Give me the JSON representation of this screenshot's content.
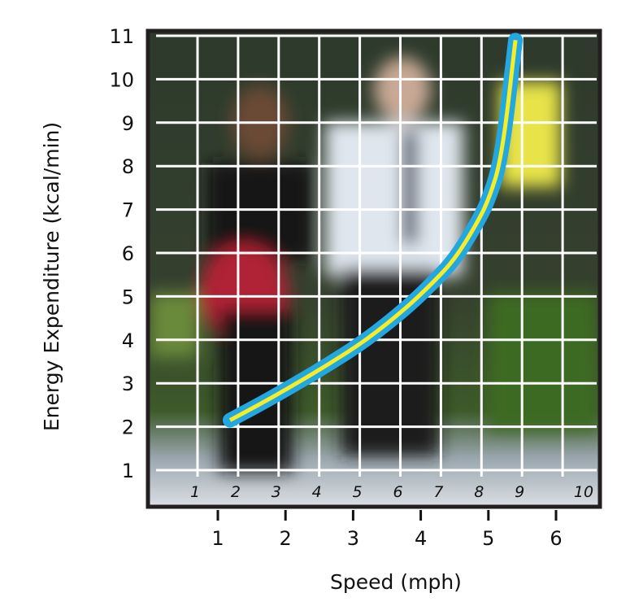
{
  "chart_data": {
    "type": "line",
    "xlabel": "Speed (mph)",
    "ylabel": "Energy Expenditure (kcal/min)",
    "x_ticks": [
      1,
      2,
      3,
      4,
      5,
      6
    ],
    "y_ticks": [
      1,
      2,
      3,
      4,
      5,
      6,
      7,
      8,
      9,
      10,
      11
    ],
    "inner_x_labels": [
      "1",
      "2",
      "3",
      "4",
      "5",
      "6",
      "7",
      "8",
      "9",
      "10"
    ],
    "xlim": [
      0,
      6.2
    ],
    "ylim": [
      0,
      11.2
    ],
    "grid": true,
    "background": "blurred photo of people walking",
    "series": [
      {
        "x": [
          1.18,
          1.6,
          2.0,
          2.6,
          3.2,
          3.8,
          4.2,
          4.5,
          4.8,
          5.0,
          5.2,
          5.4
        ],
        "y": [
          2.15,
          2.5,
          2.85,
          3.4,
          4.0,
          4.75,
          5.35,
          5.85,
          6.6,
          7.2,
          8.2,
          10.9
        ],
        "color_outer": "#22a7e0",
        "color_inner": "#f5ec2a"
      }
    ]
  }
}
